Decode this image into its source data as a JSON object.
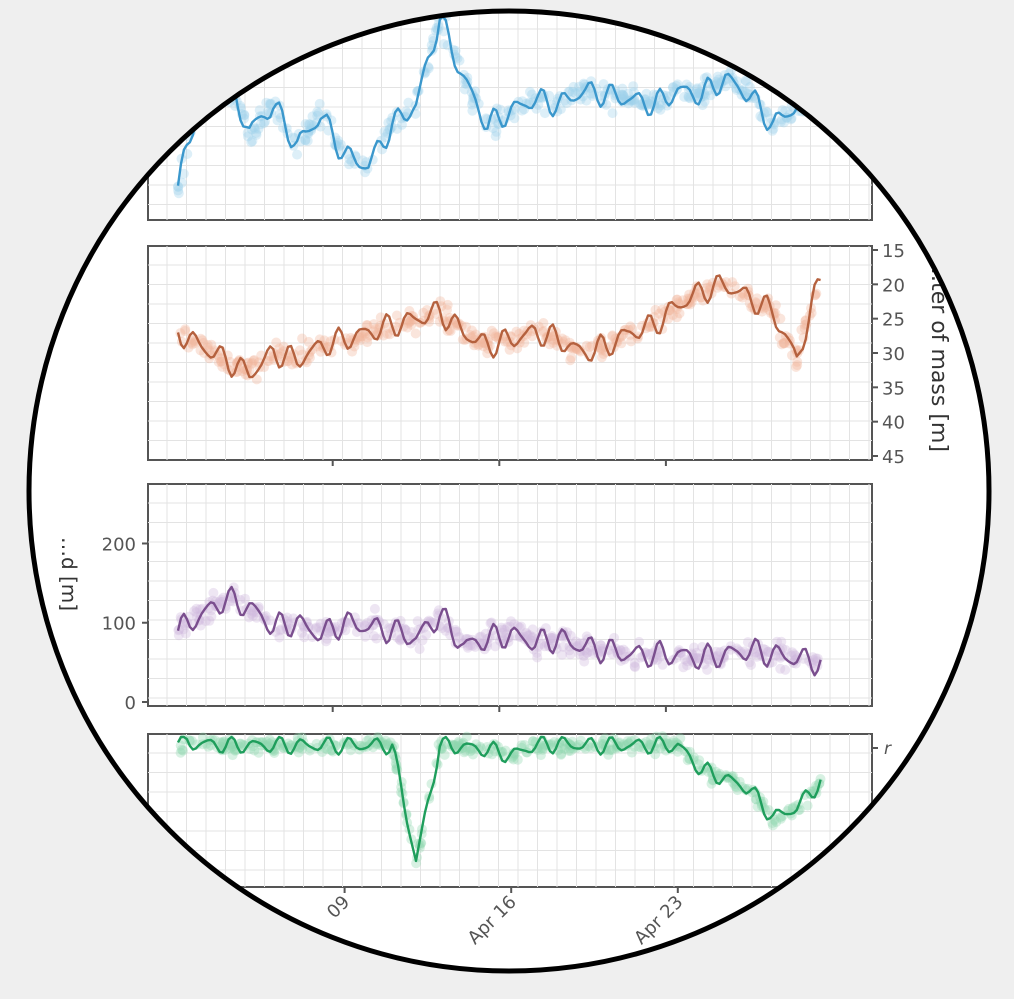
{
  "colors": {
    "page_background": "#efefef",
    "circle_fill": "#ffffff",
    "circle_border": "#000000",
    "panel_border": "#555555",
    "grid": "#e3e3e3"
  },
  "chart_data": [
    {
      "type": "line",
      "panel": 1,
      "color": "#3a97cc",
      "points_color": "#9ed0ec",
      "x": [
        "Apr 02",
        "Apr 03",
        "Apr 04",
        "Apr 05",
        "Apr 06",
        "Apr 07",
        "Apr 08",
        "Apr 09",
        "Apr 10",
        "Apr 11",
        "Apr 12",
        "Apr 13",
        "Apr 14",
        "Apr 15",
        "Apr 16",
        "Apr 17",
        "Apr 18",
        "Apr 19",
        "Apr 20",
        "Apr 21",
        "Apr 22",
        "Apr 23",
        "Apr 24",
        "Apr 25",
        "Apr 26",
        "Apr 27",
        "Apr 28",
        "Apr 29"
      ],
      "values": [
        0.15,
        0.62,
        0.7,
        0.42,
        0.55,
        0.35,
        0.5,
        0.3,
        0.25,
        0.45,
        0.55,
        0.98,
        0.68,
        0.45,
        0.52,
        0.58,
        0.55,
        0.62,
        0.6,
        0.58,
        0.55,
        0.62,
        0.6,
        0.68,
        0.6,
        0.45,
        0.55,
        0.55
      ],
      "y_tick_labels": [],
      "ylabel": ""
    },
    {
      "type": "line",
      "panel": 2,
      "color": "#b5613e",
      "points_color": "#f0b59b",
      "x": [
        "Apr 02",
        "Apr 03",
        "Apr 04",
        "Apr 05",
        "Apr 06",
        "Apr 07",
        "Apr 08",
        "Apr 09",
        "Apr 10",
        "Apr 11",
        "Apr 12",
        "Apr 13",
        "Apr 14",
        "Apr 15",
        "Apr 16",
        "Apr 17",
        "Apr 18",
        "Apr 19",
        "Apr 20",
        "Apr 21",
        "Apr 22",
        "Apr 23",
        "Apr 24",
        "Apr 25",
        "Apr 26",
        "Apr 27",
        "Apr 28",
        "Apr 29"
      ],
      "values": [
        27,
        29,
        31,
        33,
        30,
        31,
        29,
        28,
        27,
        26,
        25,
        24,
        27,
        29,
        28,
        27,
        28,
        30,
        29,
        27,
        26,
        23,
        21,
        20,
        22,
        24,
        31,
        19
      ],
      "y_ticks": [
        15,
        20,
        25,
        30,
        35,
        40,
        45
      ],
      "y_tick_labels": [
        "15",
        "20",
        "25",
        "30",
        "35",
        "40",
        "45"
      ],
      "ylim": [
        15,
        45
      ],
      "y_reversed": true,
      "ylabel": "…ter of mass [m]"
    },
    {
      "type": "line",
      "panel": 3,
      "color": "#7a4e8e",
      "points_color": "#cdb6dd",
      "x": [
        "Apr 02",
        "Apr 03",
        "Apr 04",
        "Apr 05",
        "Apr 06",
        "Apr 07",
        "Apr 08",
        "Apr 09",
        "Apr 10",
        "Apr 11",
        "Apr 12",
        "Apr 13",
        "Apr 14",
        "Apr 15",
        "Apr 16",
        "Apr 17",
        "Apr 18",
        "Apr 19",
        "Apr 20",
        "Apr 21",
        "Apr 22",
        "Apr 23",
        "Apr 24",
        "Apr 25",
        "Apr 26",
        "Apr 27",
        "Apr 28",
        "Apr 29"
      ],
      "values": [
        90,
        110,
        130,
        120,
        95,
        100,
        85,
        100,
        95,
        90,
        80,
        110,
        70,
        80,
        85,
        75,
        80,
        70,
        65,
        60,
        60,
        60,
        55,
        60,
        65,
        60,
        55,
        50
      ],
      "y_ticks": [
        0,
        100,
        200
      ],
      "y_tick_labels": [
        "0",
        "100",
        "200"
      ],
      "ylim": [
        0,
        270
      ],
      "ylabel": "…d [m]"
    },
    {
      "type": "line",
      "panel": 4,
      "color": "#1f9e5c",
      "points_color": "#8fd6b0",
      "x": [
        "Apr 02",
        "Apr 03",
        "Apr 04",
        "Apr 05",
        "Apr 06",
        "Apr 07",
        "Apr 08",
        "Apr 09",
        "Apr 10",
        "Apr 11",
        "Apr 12",
        "Apr 13",
        "Apr 14",
        "Apr 15",
        "Apr 16",
        "Apr 17",
        "Apr 18",
        "Apr 19",
        "Apr 20",
        "Apr 21",
        "Apr 22",
        "Apr 23",
        "Apr 24",
        "Apr 25",
        "Apr 26",
        "Apr 27",
        "Apr 28",
        "Apr 29"
      ],
      "values": [
        0.97,
        0.96,
        0.95,
        0.95,
        0.95,
        0.95,
        0.95,
        0.95,
        0.95,
        0.95,
        0.15,
        0.95,
        0.94,
        0.92,
        0.88,
        0.95,
        0.96,
        0.95,
        0.95,
        0.95,
        0.95,
        0.95,
        0.78,
        0.72,
        0.65,
        0.45,
        0.52,
        0.7
      ],
      "y_tick_labels": [
        "r"
      ],
      "ylabel": ""
    }
  ],
  "x_tick_labels": [
    "09",
    "Apr 16",
    "Apr 23"
  ]
}
